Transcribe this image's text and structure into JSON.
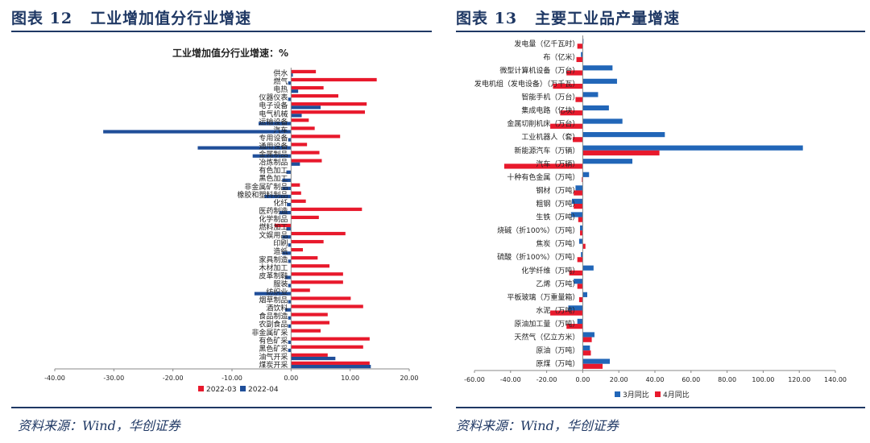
{
  "colors": {
    "navy": "#1f3864",
    "red": "#e8192c",
    "blue_dark": "#1f4e99",
    "blue": "#2166b8",
    "axis": "#888888"
  },
  "left_panel": {
    "title_num": "图表 12",
    "title_text": "工业增加值分行业增速",
    "source": "资料来源：Wind，华创证券"
  },
  "right_panel": {
    "title_num": "图表 13",
    "title_text": "主要工业品产量增速",
    "source": "资料来源：Wind，华创证券"
  },
  "chart_data": [
    {
      "type": "bar",
      "orientation": "horizontal",
      "title": "工业增加值分行业增速：%",
      "xlim": [
        -40,
        20
      ],
      "xticks": [
        -40,
        -30,
        -20,
        -10,
        0,
        10,
        20
      ],
      "xtick_labels": [
        "-40.00",
        "-30.00",
        "-20.00",
        "-10.00",
        "0.00",
        "10.00",
        "20.00"
      ],
      "legend_position": "bottom-center",
      "categories": [
        "供水",
        "燃气",
        "电热",
        "仪器仪表",
        "电子设备",
        "电气机械",
        "运输设备",
        "汽车",
        "专用设备",
        "通用设备",
        "金属制品",
        "冶炼制品",
        "有色加工",
        "黑色加工",
        "非金属矿制品",
        "橡胶和塑料制品",
        "化纤",
        "医药制造",
        "化学制品",
        "燃料加工",
        "文娱用品",
        "印刷",
        "造纸",
        "家具制造",
        "木材加工",
        "皮革制鞋",
        "服装",
        "纺织业",
        "烟草制品",
        "酒饮料",
        "食品制造",
        "农副食品",
        "非金属矿采",
        "有色矿采",
        "黑色矿采",
        "油气开采",
        "煤炭开采"
      ],
      "series": [
        {
          "name": "2022-03",
          "color": "#e8192c",
          "values": [
            4.2,
            14.5,
            5.5,
            8.0,
            12.8,
            12.5,
            3.0,
            4.0,
            8.3,
            2.7,
            4.8,
            5.2,
            0.0,
            0.0,
            1.5,
            1.7,
            2.5,
            12.0,
            4.7,
            -2.8,
            9.2,
            5.5,
            2.0,
            4.5,
            6.5,
            8.8,
            8.8,
            3.2,
            10.1,
            12.2,
            6.2,
            6.5,
            5.0,
            13.3,
            12.2,
            6.2,
            13.3
          ]
        },
        {
          "name": "2022-04",
          "color": "#1f4e99",
          "values": [
            0.3,
            -0.5,
            1.2,
            -0.5,
            5.0,
            1.8,
            -5.5,
            -31.8,
            -0.5,
            -15.8,
            -6.5,
            1.5,
            -0.8,
            -1.5,
            -1.5,
            -4.5,
            -0.7,
            -2.0,
            0.0,
            -0.8,
            -1.5,
            -0.5,
            -1.5,
            -0.5,
            0.0,
            -1.0,
            -0.5,
            -6.2,
            -0.5,
            -1.0,
            -0.5,
            -0.5,
            0.0,
            -0.5,
            -0.5,
            7.5,
            13.5
          ]
        }
      ]
    },
    {
      "type": "bar",
      "orientation": "horizontal",
      "xlim": [
        -60,
        140
      ],
      "xticks": [
        -60,
        -40,
        -20,
        0,
        20,
        40,
        60,
        80,
        100,
        120,
        140
      ],
      "xtick_labels": [
        "-60.00",
        "-40.00",
        "-20.00",
        "0.00",
        "20.00",
        "40.00",
        "60.00",
        "80.00",
        "100.00",
        "120.00",
        "140.00"
      ],
      "legend_position": "bottom-center",
      "categories": [
        "发电量（亿千瓦时）",
        "布（亿米）",
        "微型计算机设备（万台）",
        "发电机组（发电设备）（万千瓦）",
        "智能手机（万台）",
        "集成电路（亿块）",
        "金属切削机床（万台）",
        "工业机器人（套）",
        "新能源汽车（万辆）",
        "汽车（万辆）",
        "十种有色金属（万吨）",
        "钢材（万吨）",
        "粗钢（万吨）",
        "生铁（万吨）",
        "烧碱（折100%）（万吨）",
        "焦炭（万吨）",
        "硫酸（折100%）（万吨）",
        "化学纤维（万吨）",
        "乙烯（万吨）",
        "平板玻璃（万重量箱）",
        "水泥（万吨）",
        "原油加工量（万吨）",
        "天然气（亿立方米）",
        "原油（万吨）",
        "原煤（万吨）"
      ],
      "series": [
        {
          "name": "3月同比",
          "color": "#2166b8",
          "values": [
            0.4,
            -1.0,
            16.5,
            19.0,
            8.5,
            14.5,
            22.0,
            45.5,
            122.0,
            27.5,
            3.5,
            -4.0,
            -6.0,
            -6.5,
            -1.5,
            -2.0,
            -1.0,
            6.0,
            -5.0,
            2.5,
            -8.0,
            -3.0,
            6.5,
            4.0,
            15.0
          ]
        },
        {
          "name": "4月同比",
          "color": "#e8192c",
          "values": [
            -3.0,
            -3.5,
            -9.0,
            -16.5,
            -4.0,
            -12.5,
            -18.0,
            -5.5,
            42.5,
            -43.5,
            -0.5,
            -5.0,
            -5.0,
            -2.5,
            -1.5,
            1.5,
            -3.0,
            -7.5,
            -3.0,
            -2.0,
            -18.0,
            -9.0,
            5.0,
            4.5,
            11.0
          ]
        }
      ]
    }
  ]
}
